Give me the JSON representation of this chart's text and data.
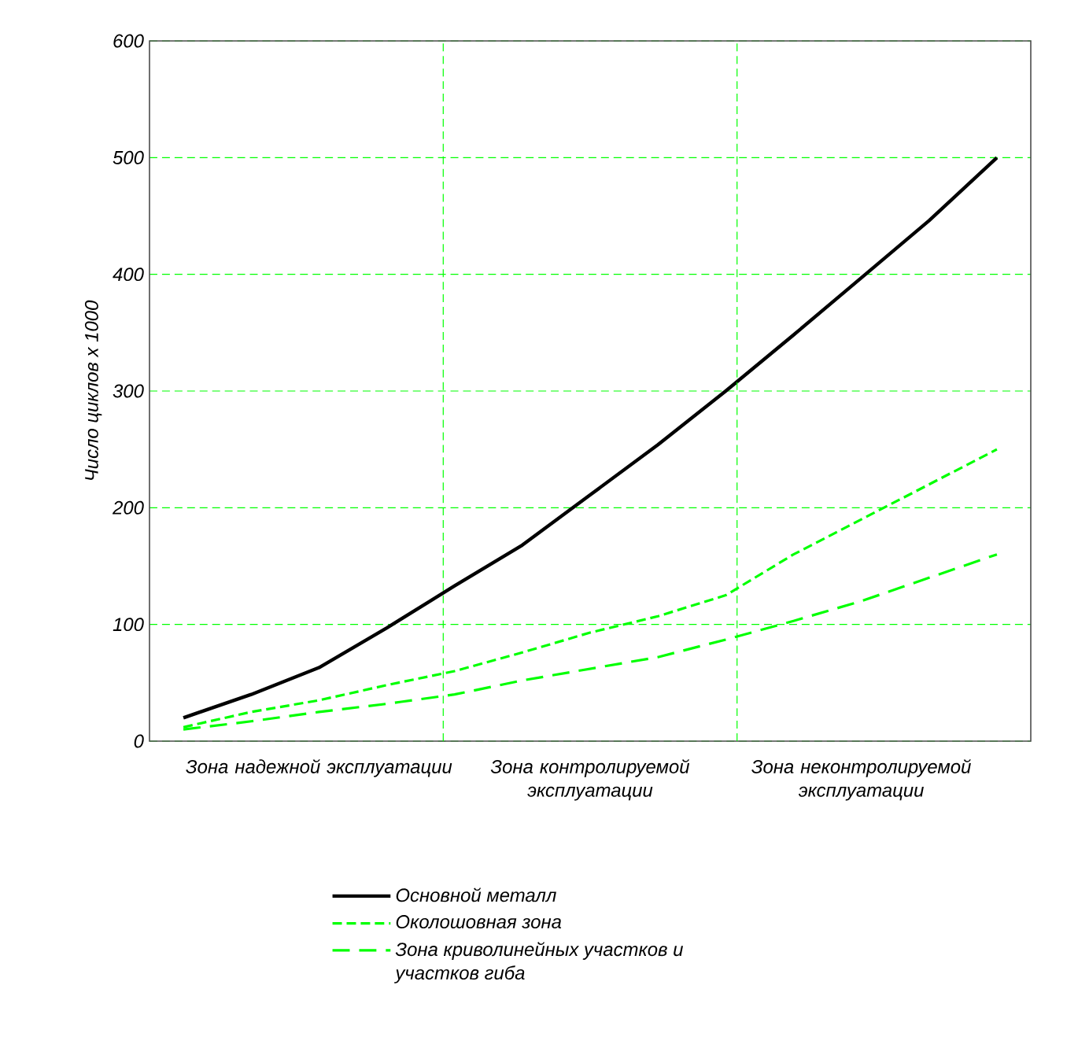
{
  "chart_data": {
    "type": "line",
    "ylabel": "Число циклов x 1000",
    "categories": [
      null,
      null,
      "Зона надежной эксплуатации",
      null,
      null,
      null,
      "Зона контролируемой эксплуатации",
      null,
      null,
      null,
      "Зона неконтролируемой эксплуатации",
      null,
      null
    ],
    "ylim": [
      0,
      600
    ],
    "yticks": [
      0,
      100,
      200,
      300,
      400,
      500,
      600
    ],
    "grid": "y",
    "legend": "bottom",
    "marker": "none",
    "series": [
      {
        "name": "Основной металл",
        "color": "#000000",
        "line_style": "solid",
        "values": [
          20,
          40,
          63,
          97,
          133,
          168,
          211,
          254,
          300,
          348,
          397,
          446,
          500
        ]
      },
      {
        "name": "Околошовная зона",
        "color": "#00ff00",
        "line_style": "dashed",
        "values": [
          12,
          25,
          35,
          48,
          60,
          76,
          93,
          107,
          125,
          160,
          190,
          220,
          250
        ]
      },
      {
        "name": "Зона криволинейных участков и участков гиба",
        "color": "#00ff00",
        "line_style": "dashed",
        "values": [
          10,
          17,
          25,
          32,
          40,
          52,
          62,
          72,
          87,
          103,
          120,
          140,
          160
        ]
      }
    ]
  }
}
